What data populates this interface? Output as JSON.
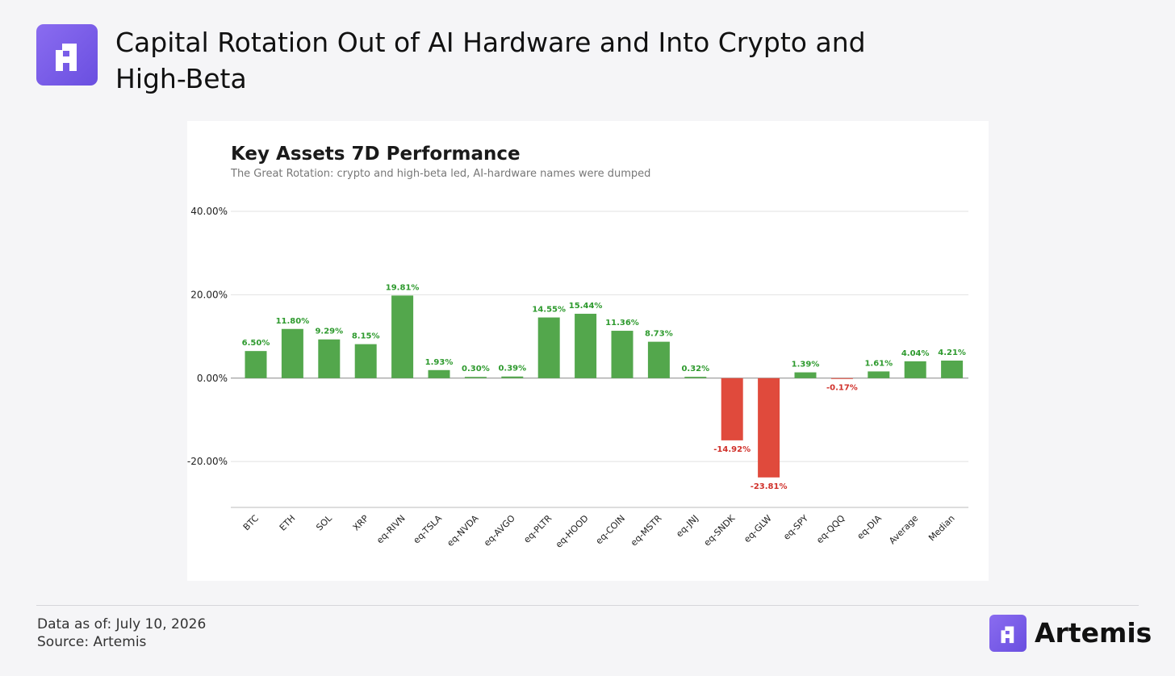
{
  "header": {
    "title": "Capital Rotation Out of AI Hardware and Into Crypto and High-Beta",
    "logo_icon": "artemis-logo-icon"
  },
  "colors": {
    "positive": "#53a74c",
    "negative": "#e04a3c",
    "positive_label": "#2e9a2e",
    "negative_label": "#d0302a",
    "brand": "#7b5cf0"
  },
  "chart_data": {
    "type": "bar",
    "title": "Key Assets 7D Performance",
    "subtitle": "The Great Rotation: crypto and high-beta led, AI-hardware names were dumped",
    "xlabel": "",
    "ylabel": "",
    "ylim": [
      -31,
      40
    ],
    "yticks": [
      40,
      20,
      0,
      -20
    ],
    "ytick_labels": [
      "40.00%",
      "20.00%",
      "0.00%",
      "-20.00%"
    ],
    "grid": true,
    "categories": [
      "BTC",
      "ETH",
      "SOL",
      "XRP",
      "eq-RIVN",
      "eq-TSLA",
      "eq-NVDA",
      "eq-AVGO",
      "eq-PLTR",
      "eq-HOOD",
      "eq-COIN",
      "eq-MSTR",
      "eq-JNJ",
      "eq-SNDK",
      "eq-GLW",
      "eq-SPY",
      "eq-QQQ",
      "eq-DIA",
      "Average",
      "Median"
    ],
    "values": [
      6.5,
      11.8,
      9.29,
      8.15,
      19.81,
      1.93,
      0.3,
      0.39,
      14.55,
      15.44,
      11.36,
      8.73,
      0.32,
      -14.92,
      -23.81,
      1.39,
      -0.17,
      1.61,
      4.04,
      4.21
    ],
    "value_labels": [
      "6.50%",
      "11.80%",
      "9.29%",
      "8.15%",
      "19.81%",
      "1.93%",
      "0.30%",
      "0.39%",
      "14.55%",
      "15.44%",
      "11.36%",
      "8.73%",
      "0.32%",
      "-14.92%",
      "-23.81%",
      "1.39%",
      "-0.17%",
      "1.61%",
      "4.04%",
      "4.21%"
    ]
  },
  "footer": {
    "data_as_of": "Data as of: July 10, 2026",
    "source": "Source: Artemis",
    "brand": "Artemis",
    "brand_icon": "artemis-logo-icon"
  }
}
